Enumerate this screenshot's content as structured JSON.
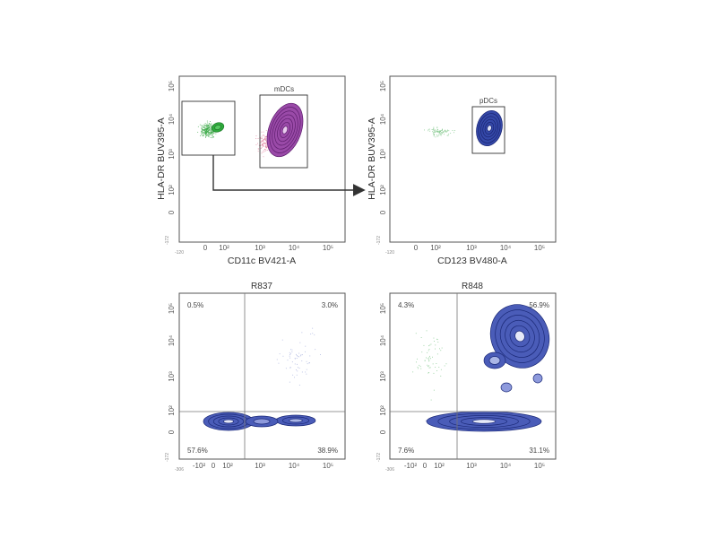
{
  "chart_data": [
    {
      "type": "scatter",
      "subtype": "flow-cytometry-contour",
      "xlabel": "CD11c BV421-A",
      "ylabel": "HLA-DR BUV395-A",
      "x_ticks": [
        "0",
        "10²",
        "10³",
        "10⁴",
        "10⁵"
      ],
      "y_ticks": [
        "0",
        "10²",
        "10³",
        "10⁴",
        "10⁵"
      ],
      "axis_min_label": "-120",
      "y_axis_min_label": "-172",
      "gates": [
        {
          "name": "",
          "x_range": [
            -100,
            200
          ],
          "y_range": [
            200,
            100000
          ]
        },
        {
          "name": "mDCs",
          "x_range": [
            1300,
            10000
          ],
          "y_range": [
            200,
            50000
          ]
        }
      ],
      "populations": [
        {
          "color": "#2eaa3c",
          "center": [
            20,
            5000
          ]
        },
        {
          "color": "#8a3a9a",
          "center": [
            4000,
            6000
          ]
        }
      ],
      "arrow": "from left gate to second plot"
    },
    {
      "type": "scatter",
      "subtype": "flow-cytometry-contour",
      "xlabel": "CD123 BV480-A",
      "ylabel": "HLA-DR BUV395-A",
      "x_ticks": [
        "0",
        "10²",
        "10³",
        "10⁴",
        "10⁵"
      ],
      "y_ticks": [
        "0",
        "10²",
        "10³",
        "10⁴",
        "10⁵"
      ],
      "axis_min_label": "-120",
      "y_axis_min_label": "-172",
      "gates": [
        {
          "name": "pDCs",
          "x_range": [
            1200,
            10000
          ],
          "y_range": [
            600,
            50000
          ]
        }
      ],
      "populations": [
        {
          "color": "#2c3a8e",
          "center": [
            4000,
            6000
          ]
        }
      ]
    },
    {
      "type": "scatter",
      "subtype": "flow-cytometry-quadrant",
      "title": "R837",
      "x_ticks": [
        "-10²",
        "0",
        "10²",
        "10³",
        "10⁴",
        "10⁵"
      ],
      "y_ticks": [
        "0",
        "10²",
        "10³",
        "10⁴",
        "10⁵"
      ],
      "x_axis_min_label": "-306",
      "y_axis_min_label": "-172",
      "quadrants": {
        "top_left": "0.5%",
        "top_right": "3.0%",
        "bottom_left": "57.6%",
        "bottom_right": "38.9%"
      },
      "quadrant_divider": {
        "x": 400,
        "y": 100
      }
    },
    {
      "type": "scatter",
      "subtype": "flow-cytometry-quadrant",
      "title": "R848",
      "x_ticks": [
        "-10²",
        "0",
        "10²",
        "10³",
        "10⁴",
        "10⁵"
      ],
      "y_ticks": [
        "0",
        "10²",
        "10³",
        "10⁴",
        "10⁵"
      ],
      "x_axis_min_label": "-306",
      "y_axis_min_label": "-172",
      "quadrants": {
        "top_left": "4.3%",
        "top_right": "56.9%",
        "bottom_left": "7.6%",
        "bottom_right": "31.1%"
      },
      "quadrant_divider": {
        "x": 400,
        "y": 100
      }
    }
  ]
}
